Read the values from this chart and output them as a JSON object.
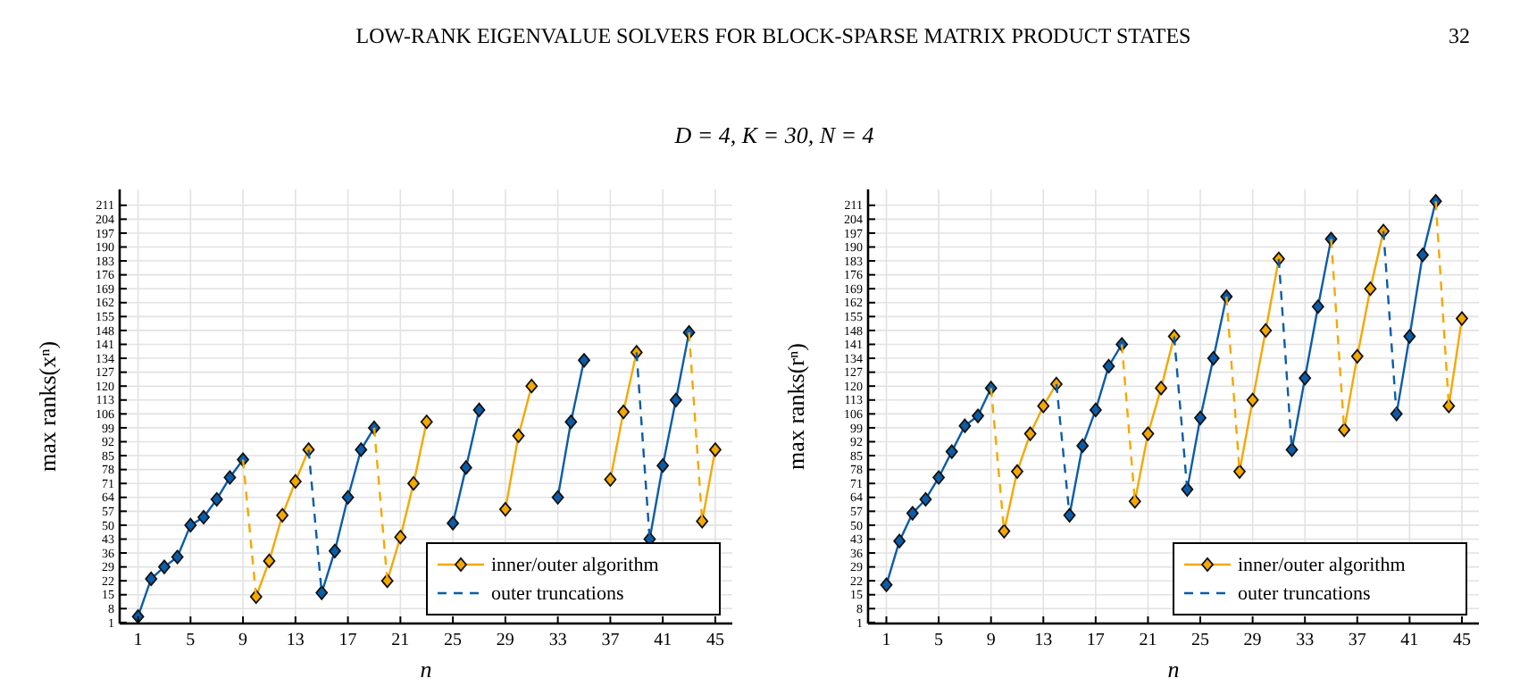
{
  "chart_data": [
    {
      "type": "line",
      "title": "D = 4,  K = 30,  N = 4",
      "annotations": [
        "LOW-RANK EIGENVALUE SOLVERS FOR BLOCK-SPARSE MATRIX PRODUCT STATES",
        "32"
      ],
      "xlabel": "n",
      "ylabel": "max ranks(xⁿ)",
      "x": [
        1,
        2,
        3,
        4,
        5,
        6,
        7,
        8,
        9,
        10,
        11,
        12,
        13,
        14,
        15,
        16,
        17,
        18,
        19,
        20,
        21,
        22,
        23,
        24,
        25,
        26,
        27,
        28,
        29,
        30,
        31,
        32,
        33,
        34,
        35,
        36,
        37,
        38,
        39,
        40,
        41,
        42,
        43,
        44,
        45
      ],
      "xlim": [
        -0.4,
        46.3
      ],
      "xticks": [
        1,
        5,
        9,
        13,
        17,
        21,
        25,
        29,
        33,
        37,
        41,
        45
      ],
      "ylim": [
        0.5,
        219
      ],
      "yticks": [
        1,
        8,
        15,
        22,
        29,
        36,
        43,
        50,
        57,
        64,
        71,
        78,
        85,
        92,
        99,
        106,
        113,
        120,
        127,
        134,
        141,
        148,
        155,
        162,
        169,
        176,
        183,
        190,
        197,
        204,
        211
      ],
      "grid": true,
      "legend": "bottom right",
      "series": [
        {
          "color": "#0b5ca8",
          "line_style": "solid",
          "marker": "diamond",
          "values": [
            4,
            23,
            29,
            34,
            50,
            54,
            63,
            74,
            83,
            null,
            null,
            null,
            null,
            null,
            16,
            37,
            64,
            88,
            99,
            null,
            null,
            null,
            null,
            null,
            51,
            79,
            108,
            null,
            null,
            null,
            null,
            null,
            64,
            102,
            133,
            null,
            null,
            null,
            null,
            43,
            80,
            113,
            147,
            null,
            null
          ]
        },
        {
          "name": "inner/outer algorithm",
          "color": "#f5a800",
          "line_style": "solid",
          "marker": "diamond",
          "values": [
            null,
            null,
            null,
            null,
            null,
            null,
            null,
            null,
            null,
            14,
            32,
            55,
            72,
            88,
            null,
            null,
            null,
            null,
            null,
            22,
            44,
            71,
            102,
            null,
            null,
            null,
            null,
            null,
            58,
            95,
            120,
            null,
            null,
            null,
            null,
            null,
            73,
            107,
            137,
            null,
            null,
            null,
            null,
            52,
            88
          ]
        },
        {
          "name": "outer truncations",
          "color": "#0b5ca8",
          "line_style": "dashed",
          "marker": "none",
          "values": [
            null,
            null,
            null,
            null,
            null,
            null,
            null,
            null,
            null,
            null,
            null,
            null,
            null,
            88,
            16,
            null,
            null,
            null,
            null,
            null,
            null,
            null,
            null,
            null,
            null,
            null,
            null,
            null,
            null,
            null,
            null,
            null,
            null,
            null,
            null,
            null,
            null,
            null,
            137,
            43,
            null,
            null,
            null,
            null,
            null
          ]
        },
        {
          "color": "#f5a800",
          "line_style": "dashed",
          "marker": "none",
          "values": [
            null,
            null,
            null,
            null,
            null,
            null,
            null,
            null,
            83,
            14,
            null,
            null,
            null,
            null,
            null,
            null,
            null,
            null,
            99,
            22,
            null,
            null,
            null,
            null,
            null,
            null,
            null,
            null,
            null,
            null,
            null,
            null,
            null,
            null,
            null,
            null,
            null,
            null,
            null,
            null,
            null,
            null,
            147,
            52,
            null
          ]
        }
      ]
    },
    {
      "type": "line",
      "xlabel": "n",
      "ylabel": "max ranks(rⁿ)",
      "x": [
        1,
        2,
        3,
        4,
        5,
        6,
        7,
        8,
        9,
        10,
        11,
        12,
        13,
        14,
        15,
        16,
        17,
        18,
        19,
        20,
        21,
        22,
        23,
        24,
        25,
        26,
        27,
        28,
        29,
        30,
        31,
        32,
        33,
        34,
        35,
        36,
        37,
        38,
        39,
        40,
        41,
        42,
        43,
        44,
        45
      ],
      "xlim": [
        -0.4,
        46.3
      ],
      "xticks": [
        1,
        5,
        9,
        13,
        17,
        21,
        25,
        29,
        33,
        37,
        41,
        45
      ],
      "ylim": [
        0.5,
        219
      ],
      "yticks": [
        1,
        8,
        15,
        22,
        29,
        36,
        43,
        50,
        57,
        64,
        71,
        78,
        85,
        92,
        99,
        106,
        113,
        120,
        127,
        134,
        141,
        148,
        155,
        162,
        169,
        176,
        183,
        190,
        197,
        204,
        211
      ],
      "grid": true,
      "legend": "bottom right",
      "series": [
        {
          "color": "#0b5ca8",
          "line_style": "solid",
          "marker": "diamond",
          "values": [
            20,
            42,
            56,
            63,
            74,
            87,
            100,
            105,
            119,
            null,
            null,
            null,
            null,
            null,
            55,
            90,
            108,
            130,
            141,
            null,
            null,
            null,
            null,
            68,
            104,
            134,
            165,
            null,
            null,
            null,
            null,
            88,
            124,
            160,
            194,
            null,
            null,
            null,
            null,
            106,
            145,
            186,
            213,
            null,
            null
          ]
        },
        {
          "name": "inner/outer algorithm",
          "color": "#f5a800",
          "line_style": "solid",
          "marker": "diamond",
          "values": [
            null,
            null,
            null,
            null,
            null,
            null,
            null,
            null,
            null,
            47,
            77,
            96,
            110,
            121,
            null,
            null,
            null,
            null,
            null,
            62,
            96,
            119,
            145,
            null,
            null,
            null,
            null,
            77,
            113,
            148,
            184,
            null,
            null,
            null,
            null,
            98,
            135,
            169,
            198,
            null,
            null,
            null,
            null,
            110,
            154
          ]
        },
        {
          "name": "outer truncations",
          "color": "#0b5ca8",
          "line_style": "dashed",
          "marker": "none",
          "values": [
            null,
            null,
            null,
            null,
            null,
            null,
            null,
            null,
            null,
            null,
            null,
            null,
            null,
            121,
            55,
            null,
            null,
            null,
            null,
            null,
            null,
            null,
            145,
            68,
            null,
            null,
            null,
            null,
            null,
            null,
            184,
            88,
            null,
            null,
            null,
            null,
            null,
            null,
            198,
            106,
            null,
            null,
            null,
            null,
            null
          ]
        },
        {
          "color": "#f5a800",
          "line_style": "dashed",
          "marker": "none",
          "values": [
            null,
            null,
            null,
            null,
            null,
            null,
            null,
            null,
            119,
            47,
            null,
            null,
            null,
            null,
            null,
            null,
            null,
            null,
            141,
            62,
            null,
            null,
            null,
            null,
            null,
            null,
            165,
            77,
            null,
            null,
            null,
            null,
            null,
            null,
            194,
            98,
            null,
            null,
            null,
            null,
            null,
            null,
            213,
            110,
            null
          ]
        }
      ]
    }
  ]
}
